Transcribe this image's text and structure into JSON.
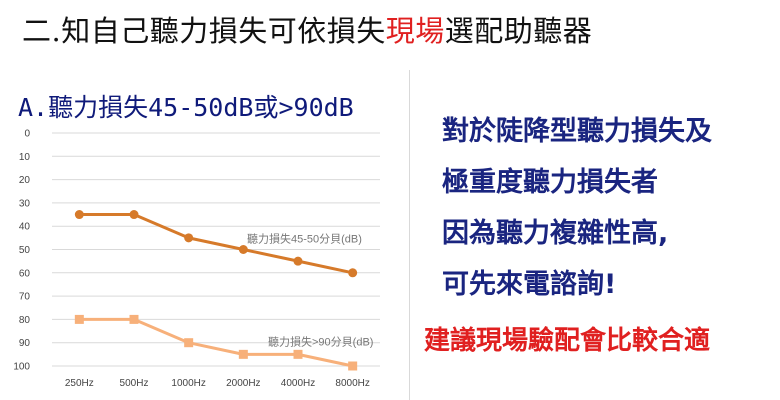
{
  "title": {
    "prefix": "二.知自己聽力損失可依損失",
    "highlight": "現場",
    "suffix": "選配助聽器"
  },
  "chart_heading": "A.聽力損失45-50dB或>90dB",
  "info_lines": [
    "對於陡降型聽力損失及",
    "極重度聽力損失者",
    "因為聽力複雜性高,",
    "可先來電諮詢!"
  ],
  "recommendation": "建議現場驗配會比較合適",
  "colors": {
    "series1": "#d67a2a",
    "series2": "#f7b07a",
    "title_text": "#111111",
    "highlight": "#e02020",
    "info_text": "#1a2580",
    "heading_text": "#0f1a7a"
  },
  "chart_data": {
    "type": "line",
    "title": "",
    "xlabel": "",
    "ylabel": "",
    "categories": [
      "250Hz",
      "500Hz",
      "1000Hz",
      "2000Hz",
      "4000Hz",
      "8000Hz"
    ],
    "y_ticks": [
      0,
      10,
      20,
      30,
      40,
      50,
      60,
      70,
      80,
      90,
      100
    ],
    "ylim": [
      0,
      100
    ],
    "y_inverted": true,
    "grid": true,
    "series": [
      {
        "name": "聽力損失45-50分貝(dB)",
        "values": [
          35,
          35,
          45,
          50,
          55,
          60
        ],
        "color": "#d67a2a",
        "marker": "circle"
      },
      {
        "name": "聽力損失>90分貝(dB)",
        "values": [
          80,
          80,
          90,
          95,
          95,
          100
        ],
        "color": "#f7b07a",
        "marker": "square"
      }
    ]
  }
}
